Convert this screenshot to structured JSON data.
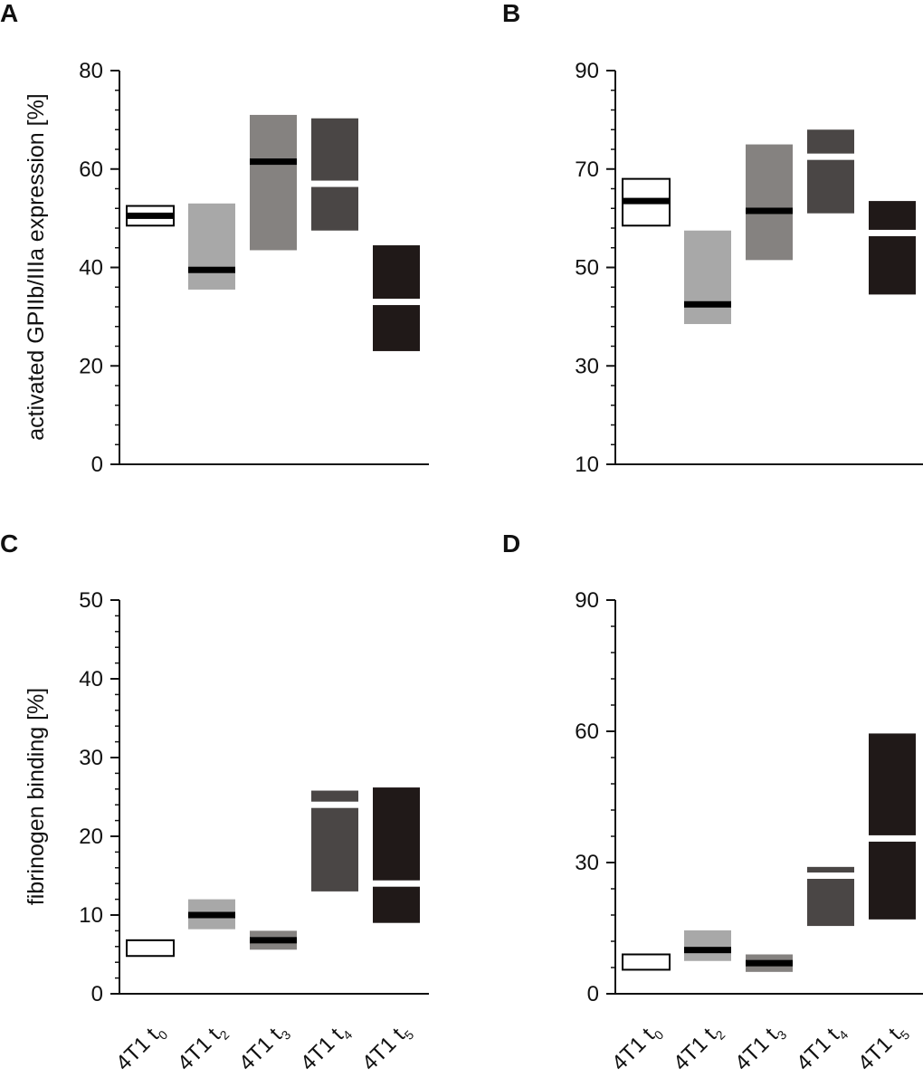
{
  "colors": {
    "t0": "#ffffff",
    "t2": "#a8a8a8",
    "t3": "#858280",
    "t4": "#4a4645",
    "t5": "#201918",
    "median_dark": "#000000",
    "median_light": "#ffffff",
    "axis": "#111111"
  },
  "categories": [
    {
      "base": "4T1 t",
      "sub": "0"
    },
    {
      "base": "4T1 t",
      "sub": "2"
    },
    {
      "base": "4T1 t",
      "sub": "3"
    },
    {
      "base": "4T1 t",
      "sub": "4"
    },
    {
      "base": "4T1 t",
      "sub": "5"
    }
  ],
  "chart_data": [
    {
      "panel": "A",
      "type": "box",
      "ylabel": "activated GPIIb/IIIa expression [%]",
      "ylim": [
        0,
        80
      ],
      "yticks": [
        0,
        20,
        40,
        60,
        80
      ],
      "minor_step": 4,
      "show_categories": false,
      "series": [
        {
          "category": "4T1 t0",
          "low": 48.5,
          "high": 52.5,
          "median": 50.5,
          "median_color": "dark",
          "outlined": true
        },
        {
          "category": "4T1 t2",
          "low": 35.5,
          "high": 53,
          "median": 39.5,
          "median_color": "dark",
          "outlined": false
        },
        {
          "category": "4T1 t3",
          "low": 43.5,
          "high": 71,
          "median": 61.5,
          "median_color": "dark",
          "outlined": false
        },
        {
          "category": "4T1 t4",
          "low": 47.5,
          "high": 70.3,
          "median": 57,
          "median_color": "light",
          "outlined": false
        },
        {
          "category": "4T1 t5",
          "low": 23,
          "high": 44.5,
          "median": 33,
          "median_color": "light",
          "outlined": false
        }
      ]
    },
    {
      "panel": "B",
      "type": "box",
      "ylabel": "",
      "ylim": [
        10,
        90
      ],
      "yticks": [
        10,
        30,
        50,
        70,
        90
      ],
      "minor_step": 4,
      "show_categories": false,
      "series": [
        {
          "category": "4T1 t0",
          "low": 58.5,
          "high": 68,
          "median": 63.5,
          "median_color": "dark",
          "outlined": true
        },
        {
          "category": "4T1 t2",
          "low": 38.5,
          "high": 57.5,
          "median": 42.5,
          "median_color": "dark",
          "outlined": false
        },
        {
          "category": "4T1 t3",
          "low": 51.5,
          "high": 75,
          "median": 61.5,
          "median_color": "dark",
          "outlined": false
        },
        {
          "category": "4T1 t4",
          "low": 61,
          "high": 78,
          "median": 72.5,
          "median_color": "light",
          "outlined": false
        },
        {
          "category": "4T1 t5",
          "low": 44.5,
          "high": 63.5,
          "median": 57,
          "median_color": "light",
          "outlined": false
        }
      ]
    },
    {
      "panel": "C",
      "type": "box",
      "ylabel": "fibrinogen binding [%]",
      "ylim": [
        0,
        50
      ],
      "yticks": [
        0,
        10,
        20,
        30,
        40,
        50
      ],
      "minor_step": 2,
      "show_categories": true,
      "series": [
        {
          "category": "4T1 t0",
          "low": 4.8,
          "high": 6.8,
          "median": 5.8,
          "median_color": "light",
          "outlined": true
        },
        {
          "category": "4T1 t2",
          "low": 8.2,
          "high": 12,
          "median": 10,
          "median_color": "dark",
          "outlined": false
        },
        {
          "category": "4T1 t3",
          "low": 5.6,
          "high": 8,
          "median": 6.8,
          "median_color": "dark",
          "outlined": false
        },
        {
          "category": "4T1 t4",
          "low": 13,
          "high": 25.8,
          "median": 24,
          "median_color": "light",
          "outlined": false
        },
        {
          "category": "4T1 t5",
          "low": 9,
          "high": 26.2,
          "median": 14,
          "median_color": "light",
          "outlined": false
        }
      ]
    },
    {
      "panel": "D",
      "type": "box",
      "ylabel": "",
      "ylim": [
        0,
        90
      ],
      "yticks": [
        0,
        30,
        60,
        90
      ],
      "minor_step": 6,
      "show_categories": true,
      "series": [
        {
          "category": "4T1 t0",
          "low": 5.5,
          "high": 9,
          "median": 7,
          "median_color": "light",
          "outlined": true
        },
        {
          "category": "4T1 t2",
          "low": 7.5,
          "high": 14.5,
          "median": 10,
          "median_color": "dark",
          "outlined": false
        },
        {
          "category": "4T1 t3",
          "low": 5,
          "high": 9,
          "median": 7,
          "median_color": "dark",
          "outlined": false
        },
        {
          "category": "4T1 t4",
          "low": 15.5,
          "high": 29,
          "median": 27,
          "median_color": "light",
          "outlined": false
        },
        {
          "category": "4T1 t5",
          "low": 17,
          "high": 59.5,
          "median": 35.5,
          "median_color": "light",
          "outlined": false
        }
      ]
    }
  ]
}
